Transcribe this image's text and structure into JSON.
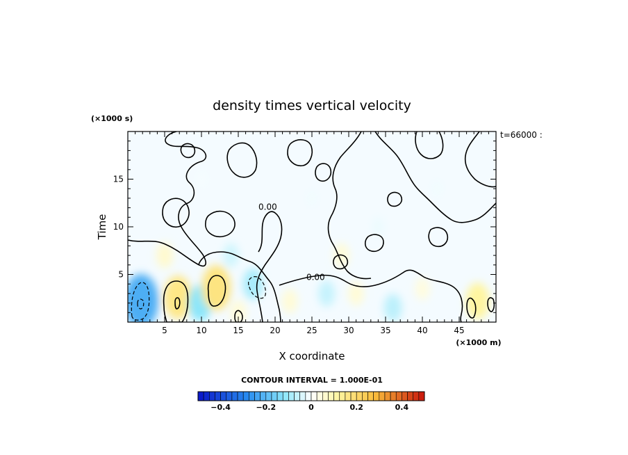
{
  "chart_data": {
    "type": "heatmap",
    "title": "density times vertical velocity",
    "xlabel": "X coordinate",
    "ylabel": "Time",
    "x_unit": "(×1000 m)",
    "y_unit": "(×1000 s)",
    "time_stamp": "t=66000 :",
    "contour_interval_text": "CONTOUR INTERVAL = 1.000E-01",
    "xlim": [
      0,
      50
    ],
    "ylim": [
      0,
      20
    ],
    "x_ticks": [
      5,
      10,
      15,
      20,
      25,
      30,
      35,
      40,
      45
    ],
    "y_ticks": [
      5,
      10,
      15
    ],
    "contour_labels": [
      {
        "x": 19,
        "y": 11.8,
        "text": "0.00"
      },
      {
        "x": 25.5,
        "y": 4.4,
        "text": "0.00"
      }
    ],
    "colorbar": {
      "min": -0.5,
      "max": 0.5,
      "ticks": [
        -0.4,
        -0.2,
        0,
        0.2,
        0.4
      ],
      "tick_labels": [
        "−0.4",
        "−0.2",
        "0",
        "0.2",
        "0.4"
      ],
      "n_levels": 40,
      "low_color": "#0a14c8",
      "mid_color": "#ffffff",
      "high_color": "#c8140a"
    },
    "features": [
      {
        "x": 1.8,
        "y": 2.2,
        "value": -0.22
      },
      {
        "x": 6.8,
        "y": 2.6,
        "value": 0.16
      },
      {
        "x": 9.8,
        "y": 2.0,
        "value": -0.12
      },
      {
        "x": 12.0,
        "y": 3.6,
        "value": 0.17
      },
      {
        "x": 15.0,
        "y": 1.0,
        "value": 0.05
      },
      {
        "x": 17.0,
        "y": 4.0,
        "value": -0.09
      },
      {
        "x": 22.0,
        "y": 2.2,
        "value": 0.05
      },
      {
        "x": 27.0,
        "y": 3.0,
        "value": -0.06
      },
      {
        "x": 31.0,
        "y": 3.0,
        "value": 0.05
      },
      {
        "x": 36.0,
        "y": 1.5,
        "value": -0.07
      },
      {
        "x": 40.0,
        "y": 3.5,
        "value": 0.04
      },
      {
        "x": 47.5,
        "y": 2.2,
        "value": 0.12
      },
      {
        "x": 5.0,
        "y": 7.0,
        "value": 0.06
      },
      {
        "x": 14.0,
        "y": 7.0,
        "value": -0.05
      },
      {
        "x": 29.0,
        "y": 7.0,
        "value": 0.05
      },
      {
        "x": 34.0,
        "y": 10.0,
        "value": -0.02
      },
      {
        "x": 25.0,
        "y": 13.0,
        "value": -0.015
      },
      {
        "x": 10.0,
        "y": 15.0,
        "value": -0.01
      },
      {
        "x": 42.0,
        "y": 14.0,
        "value": -0.015
      }
    ]
  }
}
